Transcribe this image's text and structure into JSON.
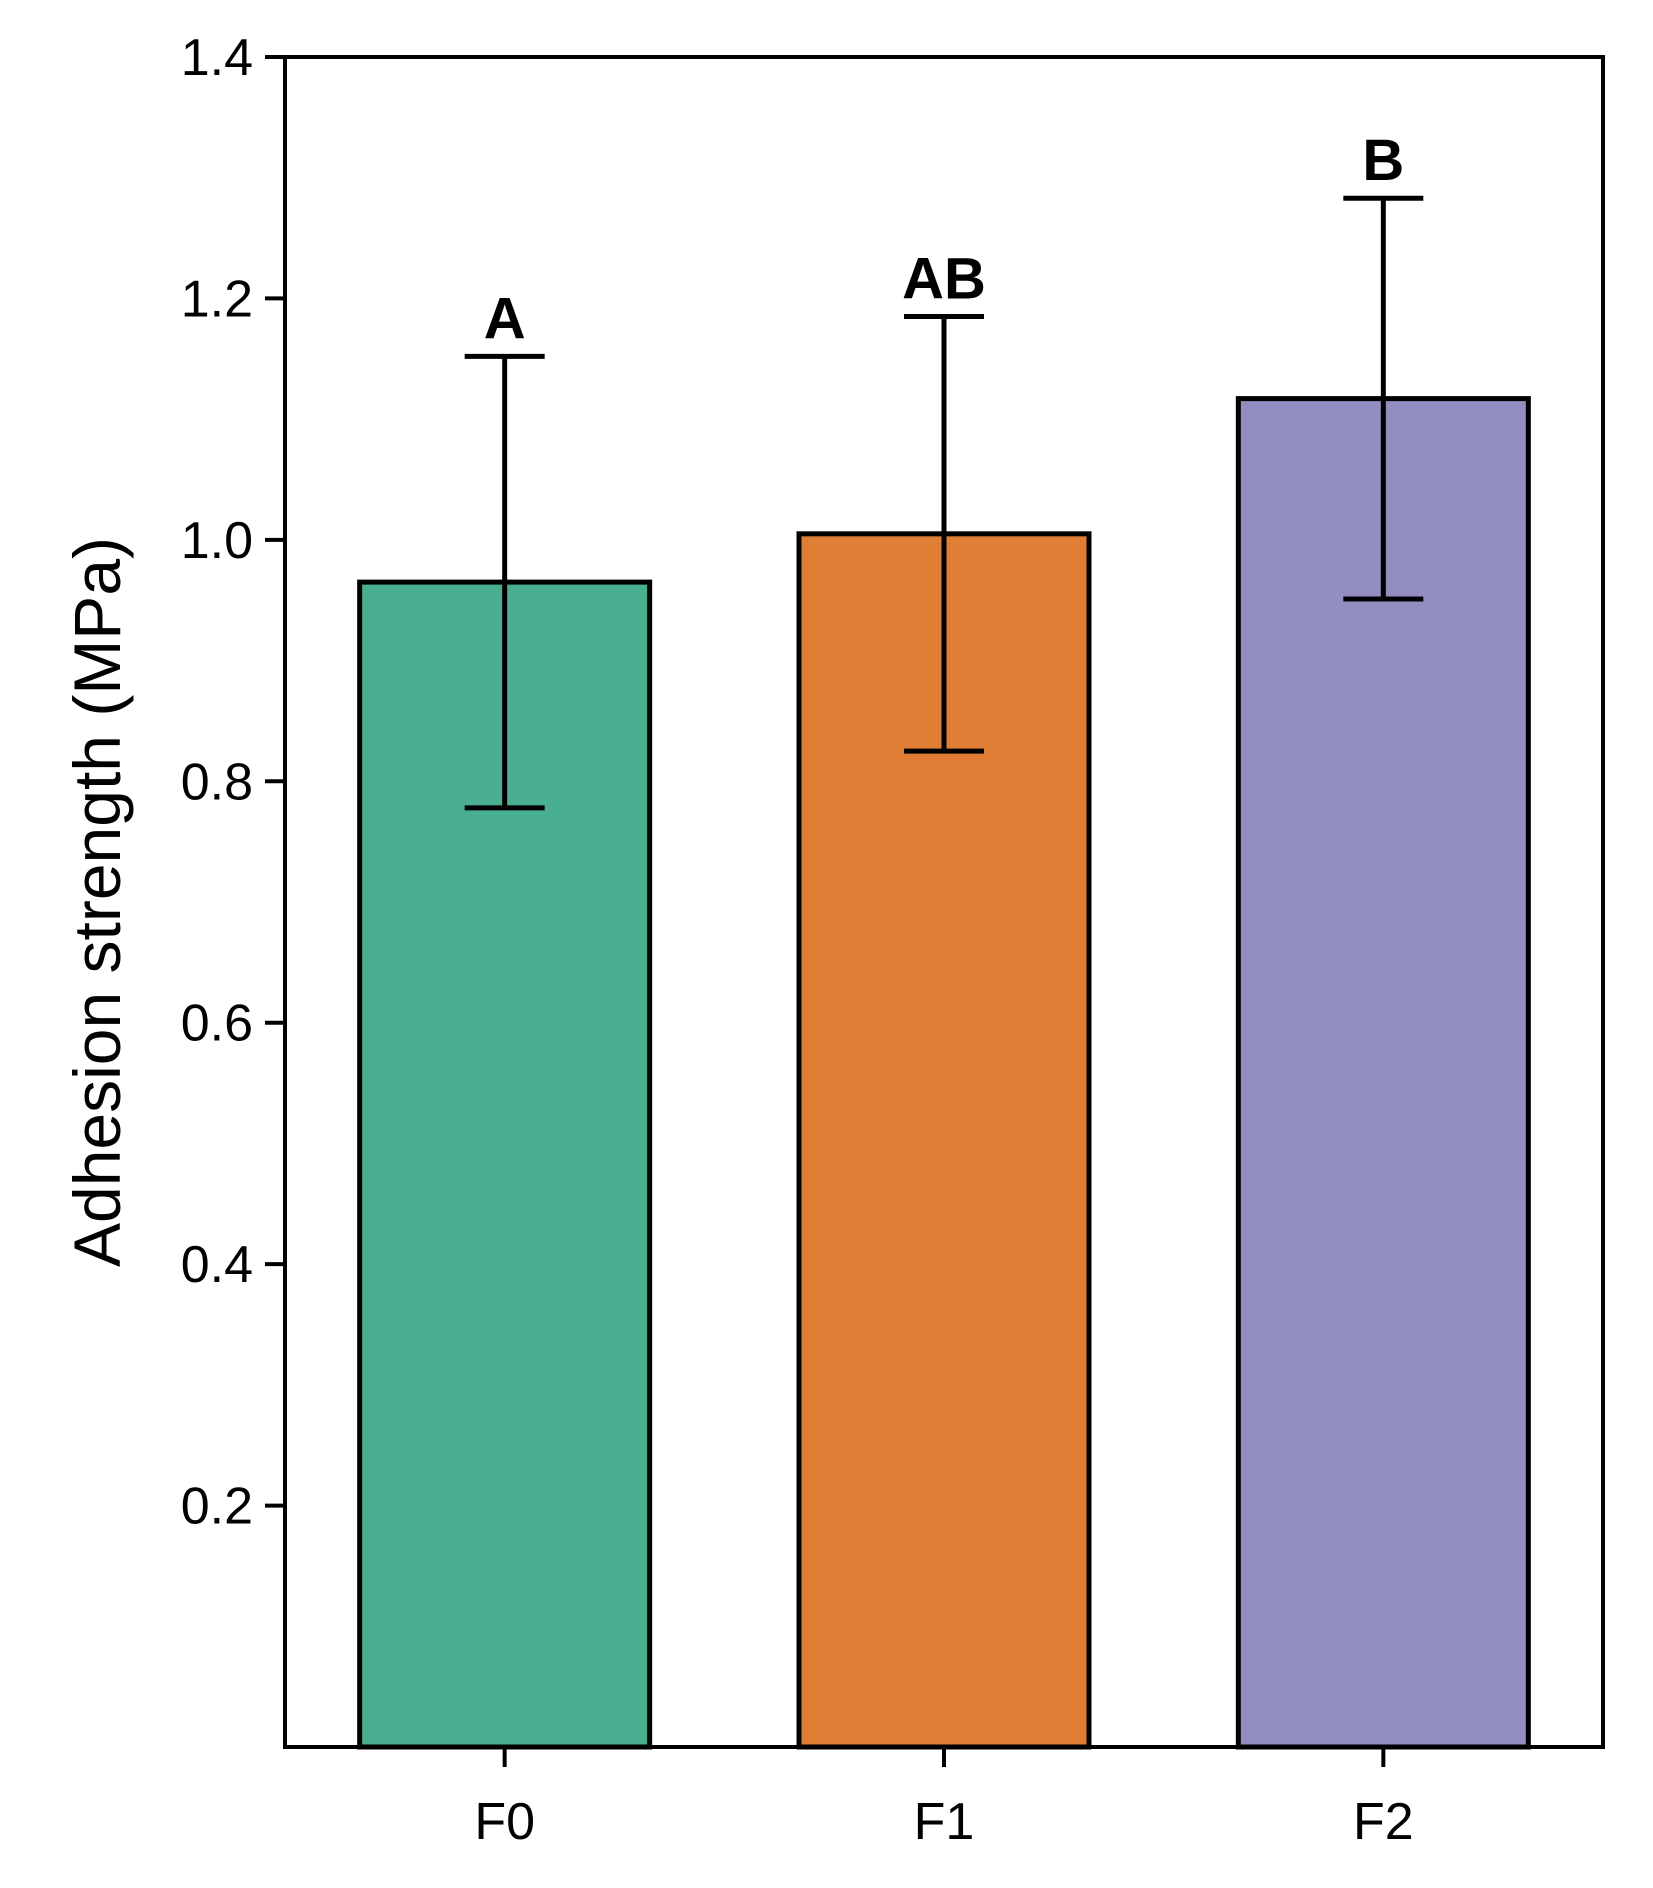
{
  "chart_data": {
    "type": "bar",
    "title": "",
    "xlabel": "",
    "ylabel": "Adhesion strength (MPa)",
    "ylim": [
      0.0,
      1.4
    ],
    "yticks": [
      0.2,
      0.4,
      0.6,
      0.8,
      1.0,
      1.2,
      1.4
    ],
    "ytick_labels": [
      "0.2",
      "0.4",
      "0.6",
      "0.8",
      "1.0",
      "1.2",
      "1.4"
    ],
    "categories": [
      "F0",
      "F1",
      "F2"
    ],
    "values": [
      0.965,
      1.005,
      1.117
    ],
    "error": [
      0.187,
      0.18,
      0.166
    ],
    "significance_labels": [
      "A",
      "AB",
      "B"
    ],
    "colors": [
      "#4AAF91",
      "#E07E35",
      "#938EC1"
    ],
    "edge_color": "#000000",
    "grid": false
  }
}
